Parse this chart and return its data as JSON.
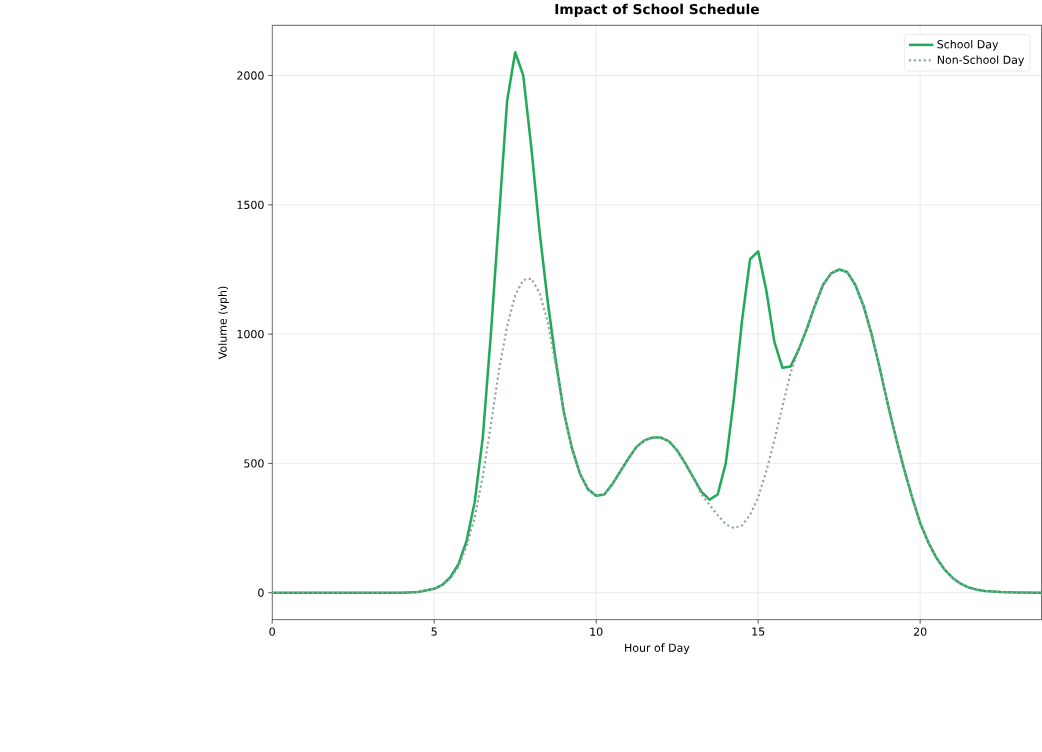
{
  "chart_data": {
    "type": "line",
    "title": "Impact of School Schedule",
    "xlabel": "Hour of Day",
    "ylabel": "Volume (vph)",
    "x": [
      0,
      1,
      2,
      3,
      4,
      4.5,
      5,
      5.25,
      5.5,
      5.75,
      6,
      6.25,
      6.5,
      6.75,
      7,
      7.25,
      7.5,
      7.75,
      8,
      8.25,
      8.5,
      8.75,
      9,
      9.25,
      9.5,
      9.75,
      10,
      10.25,
      10.5,
      10.75,
      11,
      11.25,
      11.5,
      11.75,
      12,
      12.25,
      12.5,
      12.75,
      13,
      13.25,
      13.5,
      13.75,
      14,
      14.25,
      14.5,
      14.75,
      15,
      15.25,
      15.5,
      15.75,
      16,
      16.25,
      16.5,
      16.75,
      17,
      17.25,
      17.5,
      17.75,
      18,
      18.25,
      18.5,
      18.75,
      19,
      19.25,
      19.5,
      19.75,
      20,
      20.25,
      20.5,
      20.75,
      21,
      21.25,
      21.5,
      21.75,
      22,
      22.5,
      23,
      23.75
    ],
    "series": [
      {
        "name": "School Day",
        "color": "#22a95b",
        "line_style": "solid",
        "values": [
          0,
          0,
          0,
          0,
          0,
          3,
          15,
          30,
          60,
          110,
          200,
          350,
          600,
          1000,
          1450,
          1900,
          2090,
          2000,
          1720,
          1400,
          1130,
          900,
          700,
          560,
          460,
          400,
          375,
          380,
          420,
          470,
          520,
          565,
          590,
          600,
          600,
          585,
          550,
          500,
          445,
          390,
          360,
          380,
          500,
          750,
          1050,
          1290,
          1320,
          1170,
          970,
          870,
          875,
          940,
          1020,
          1110,
          1190,
          1235,
          1250,
          1240,
          1190,
          1110,
          1000,
          870,
          730,
          600,
          480,
          370,
          270,
          195,
          135,
          90,
          57,
          35,
          20,
          12,
          7,
          3,
          1,
          0
        ]
      },
      {
        "name": "Non-School Day",
        "color": "#8fa39a",
        "line_style": "dotted",
        "values": [
          0,
          0,
          0,
          0,
          0,
          3,
          15,
          30,
          55,
          100,
          180,
          290,
          450,
          650,
          860,
          1030,
          1150,
          1210,
          1215,
          1160,
          1050,
          880,
          700,
          560,
          460,
          400,
          375,
          380,
          420,
          470,
          520,
          565,
          590,
          600,
          600,
          585,
          550,
          500,
          445,
          380,
          340,
          300,
          265,
          250,
          260,
          300,
          370,
          470,
          590,
          720,
          850,
          940,
          1020,
          1110,
          1190,
          1235,
          1250,
          1240,
          1190,
          1110,
          1000,
          870,
          730,
          600,
          480,
          370,
          270,
          195,
          135,
          90,
          57,
          35,
          20,
          12,
          7,
          3,
          1,
          0
        ]
      }
    ],
    "xlim": [
      0,
      23.75
    ],
    "ylim": [
      -104.5,
      2194.5
    ],
    "xticks": [
      0,
      5,
      10,
      15,
      20
    ],
    "yticks": [
      0,
      500,
      1000,
      1500,
      2000
    ],
    "grid": true,
    "legend": "top right",
    "marker": "none"
  }
}
